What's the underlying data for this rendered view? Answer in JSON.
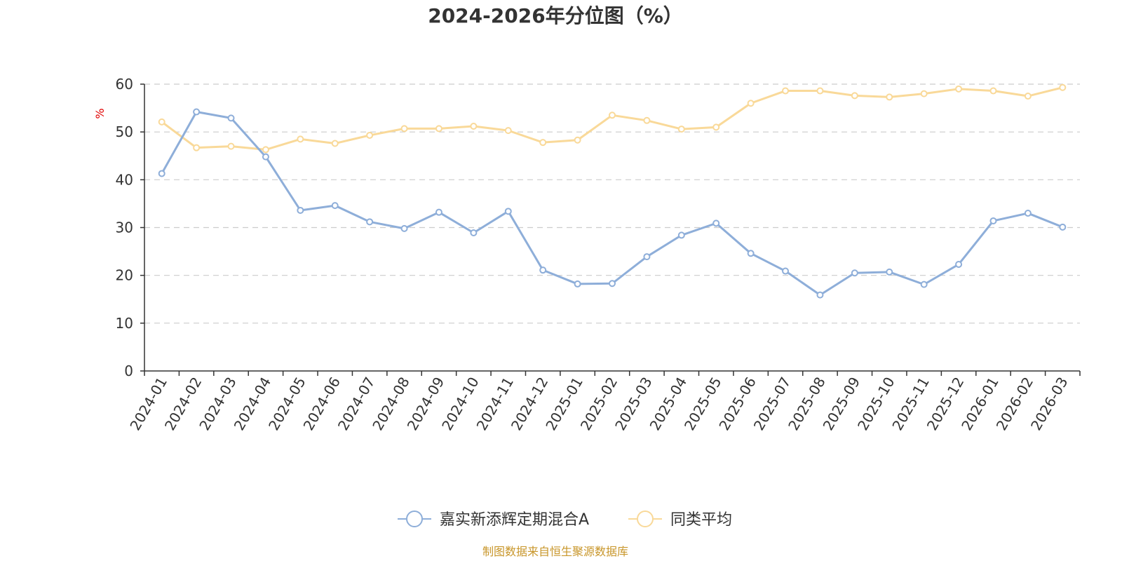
{
  "chart_data": {
    "type": "line",
    "title": "2024-2026年分位图（%）",
    "ylabel": "%",
    "xlabel": "",
    "ylim": [
      0,
      60
    ],
    "yticks": [
      0,
      10,
      20,
      30,
      40,
      50,
      60
    ],
    "grid": true,
    "legend_position": "bottom-center",
    "categories": [
      "2024-01",
      "2024-02",
      "2024-03",
      "2024-04",
      "2024-05",
      "2024-06",
      "2024-07",
      "2024-08",
      "2024-09",
      "2024-10",
      "2024-11",
      "2024-12",
      "2025-01",
      "2025-02",
      "2025-03",
      "2025-04",
      "2025-05",
      "2025-06",
      "2025-07",
      "2025-08",
      "2025-09",
      "2025-10",
      "2025-11",
      "2025-12",
      "2026-01",
      "2026-02",
      "2026-03"
    ],
    "series": [
      {
        "name": "嘉实新添辉定期混合A",
        "color": "#8eaed9",
        "values": [
          41.3,
          54.2,
          52.9,
          44.8,
          33.6,
          34.6,
          31.2,
          29.8,
          33.2,
          28.9,
          33.4,
          21.1,
          18.2,
          18.3,
          23.9,
          28.4,
          30.9,
          24.6,
          20.9,
          15.9,
          20.5,
          20.7,
          18.1,
          22.3,
          31.4,
          33.0,
          30.1
        ]
      },
      {
        "name": "同类平均",
        "color": "#f9d999",
        "values": [
          52.1,
          46.7,
          47.0,
          46.3,
          48.5,
          47.6,
          49.3,
          50.7,
          50.7,
          51.2,
          50.3,
          47.8,
          48.3,
          53.5,
          52.4,
          50.6,
          51.0,
          56.0,
          58.6,
          58.6,
          57.6,
          57.3,
          58.0,
          59.0,
          58.6,
          57.5,
          59.3
        ]
      }
    ],
    "source": "制图数据来自恒生聚源数据库"
  }
}
